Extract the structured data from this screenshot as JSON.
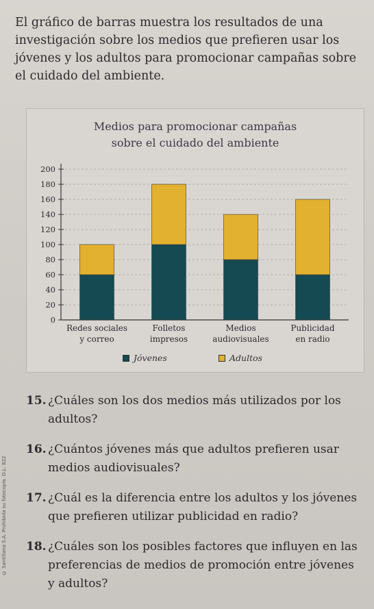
{
  "intro": "El gráfico de barras muestra los resultados de una investigación sobre los medios que prefieren usar los jóvenes y los adultos para promocionar campañas sobre el cuidado del ambiente.",
  "chart_data": {
    "type": "bar",
    "stacked": true,
    "title_line1": "Medios para promocionar campañas",
    "title_line2": "sobre el cuidado del ambiente",
    "categories": [
      [
        "Redes sociales",
        "y correo"
      ],
      [
        "Folletos",
        "impresos"
      ],
      [
        "Medios",
        "audiovisuales"
      ],
      [
        "Publicidad",
        "en radio"
      ]
    ],
    "series": [
      {
        "name": "Jóvenes",
        "color": "#164a52",
        "values": [
          60,
          100,
          80,
          60
        ]
      },
      {
        "name": "Adultos",
        "color": "#e3b130",
        "values": [
          40,
          80,
          60,
          100
        ]
      }
    ],
    "ylim": [
      0,
      200
    ],
    "yticks": [
      0,
      20,
      40,
      60,
      80,
      100,
      120,
      140,
      160,
      180,
      200
    ],
    "grid": true,
    "legend_position": "bottom"
  },
  "questions": [
    {
      "num": "15.",
      "text": "¿Cuáles son los dos medios más utilizados por los adultos?"
    },
    {
      "num": "16.",
      "text": "¿Cuántos jóvenes más que adultos prefieren usar medios audiovisuales?"
    },
    {
      "num": "17.",
      "text": "¿Cuál es la diferencia entre los adultos y los jóvenes que prefieren utilizar publicidad en radio?"
    },
    {
      "num": "18.",
      "text": "¿Cuáles son los posibles factores que influyen en las preferencias de medios de promoción entre jóvenes y adultos?"
    }
  ],
  "side_note": "© Santillana S.A. Prohibida su fotocopia. D.L. 822"
}
